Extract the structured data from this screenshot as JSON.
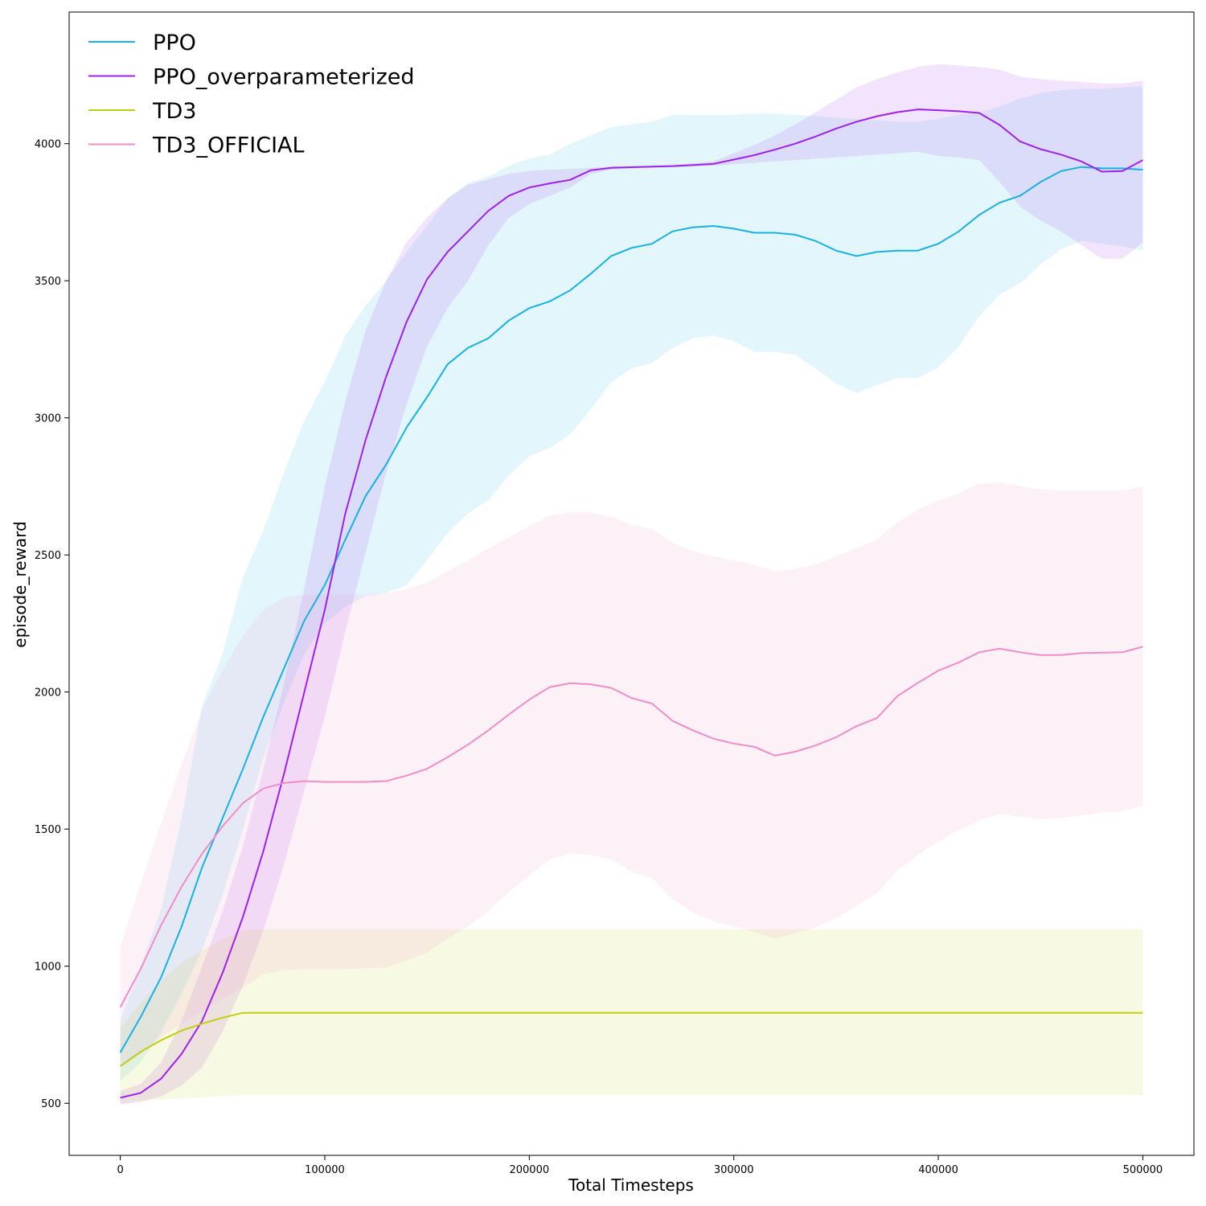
{
  "chart_data": {
    "type": "line",
    "title": "",
    "xlabel": "Total Timesteps",
    "ylabel": "episode_reward",
    "xlim": [
      -25000,
      525000
    ],
    "ylim": [
      310,
      4480
    ],
    "xticks": [
      0,
      100000,
      200000,
      300000,
      400000,
      500000
    ],
    "yticks": [
      500,
      1000,
      1500,
      2000,
      2500,
      3000,
      3500,
      4000
    ],
    "grid": false,
    "legend_position": "top-left",
    "x": [
      0,
      10000,
      20000,
      30000,
      40000,
      50000,
      60000,
      70000,
      80000,
      90000,
      100000,
      110000,
      120000,
      130000,
      140000,
      150000,
      160000,
      170000,
      180000,
      190000,
      200000,
      210000,
      220000,
      230000,
      240000,
      250000,
      260000,
      270000,
      280000,
      290000,
      300000,
      310000,
      320000,
      330000,
      340000,
      350000,
      360000,
      370000,
      380000,
      390000,
      400000,
      410000,
      420000,
      430000,
      440000,
      450000,
      460000,
      470000,
      480000,
      490000,
      500000
    ],
    "series": [
      {
        "name": "PPO",
        "color": "#17b1e4",
        "band_color": "#e3f5fb",
        "values": [
          685,
          815,
          960,
          1145,
          1360,
          1540,
          1720,
          1910,
          2085,
          2260,
          2390,
          2555,
          2715,
          2830,
          2965,
          3075,
          3195,
          3255,
          3290,
          3355,
          3400,
          3425,
          3465,
          3525,
          3590,
          3620,
          3635,
          3680,
          3695,
          3700,
          3690,
          3675,
          3675,
          3668,
          3645,
          3610,
          3590,
          3605,
          3610,
          3610,
          3635,
          3680,
          3740,
          3785,
          3810,
          3860,
          3900,
          3915,
          3910,
          3910,
          3905
        ],
        "lower": [
          580,
          650,
          760,
          900,
          1060,
          1260,
          1500,
          1760,
          1960,
          2140,
          2250,
          2310,
          2350,
          2360,
          2390,
          2480,
          2580,
          2650,
          2700,
          2790,
          2860,
          2890,
          2940,
          3030,
          3130,
          3180,
          3200,
          3255,
          3290,
          3300,
          3280,
          3240,
          3240,
          3230,
          3180,
          3125,
          3090,
          3120,
          3145,
          3145,
          3185,
          3260,
          3370,
          3450,
          3490,
          3560,
          3615,
          3645,
          3635,
          3625,
          3610
        ],
        "upper": [
          800,
          1000,
          1210,
          1540,
          1950,
          2140,
          2420,
          2590,
          2800,
          2990,
          3130,
          3300,
          3410,
          3500,
          3605,
          3700,
          3800,
          3855,
          3880,
          3920,
          3945,
          3960,
          4000,
          4030,
          4060,
          4070,
          4080,
          4105,
          4105,
          4105,
          4105,
          4110,
          4110,
          4105,
          4100,
          4095,
          4090,
          4085,
          4080,
          4080,
          4090,
          4105,
          4115,
          4135,
          4165,
          4185,
          4195,
          4200,
          4200,
          4205,
          4210
        ]
      },
      {
        "name": "PPO_overparameterized",
        "color": "#a020f0",
        "band_color": "#d8d8f8",
        "values": [
          520,
          538,
          590,
          680,
          800,
          975,
          1180,
          1420,
          1700,
          2000,
          2300,
          2650,
          2920,
          3150,
          3350,
          3505,
          3605,
          3680,
          3755,
          3810,
          3840,
          3855,
          3868,
          3903,
          3912,
          3914,
          3916,
          3918,
          3922,
          3926,
          3942,
          3958,
          3978,
          4000,
          4026,
          4055,
          4080,
          4100,
          4115,
          4125,
          4122,
          4118,
          4112,
          4068,
          4008,
          3980,
          3960,
          3935,
          3898,
          3900,
          3940
        ],
        "lower": [
          495,
          505,
          525,
          565,
          630,
          760,
          930,
          1130,
          1370,
          1640,
          1910,
          2220,
          2510,
          2800,
          3050,
          3260,
          3400,
          3500,
          3630,
          3730,
          3780,
          3810,
          3840,
          3890,
          3905,
          3910,
          3912,
          3914,
          3916,
          3920,
          3925,
          3930,
          3935,
          3940,
          3945,
          3950,
          3955,
          3960,
          3965,
          3970,
          3955,
          3950,
          3940,
          3860,
          3770,
          3720,
          3680,
          3630,
          3580,
          3580,
          3640
        ],
        "upper": [
          545,
          570,
          650,
          800,
          1000,
          1200,
          1440,
          1720,
          2030,
          2380,
          2750,
          3060,
          3320,
          3500,
          3640,
          3730,
          3800,
          3850,
          3870,
          3890,
          3900,
          3905,
          3908,
          3912,
          3916,
          3918,
          3920,
          3923,
          3928,
          3935,
          3965,
          3995,
          4030,
          4070,
          4115,
          4160,
          4205,
          4235,
          4260,
          4280,
          4290,
          4285,
          4280,
          4270,
          4245,
          4235,
          4230,
          4225,
          4220,
          4220,
          4230
        ]
      },
      {
        "name": "TD3",
        "color": "#c4cc12",
        "band_color": "#f8f8e6",
        "values": [
          635,
          688,
          730,
          765,
          790,
          812,
          830,
          830,
          830,
          830,
          830,
          830,
          830,
          830,
          830,
          830,
          830,
          830,
          830,
          830,
          830,
          830,
          830,
          830,
          830,
          830,
          830,
          830,
          830,
          830,
          830,
          830,
          830,
          830,
          830,
          830,
          830,
          830,
          830,
          830,
          830,
          830,
          830,
          830,
          830,
          830,
          830,
          830,
          830,
          830,
          830
        ],
        "lower": [
          500,
          508,
          513,
          518,
          522,
          526,
          530,
          530,
          530,
          530,
          530,
          530,
          530,
          530,
          530,
          530,
          530,
          530,
          530,
          530,
          530,
          530,
          530,
          530,
          530,
          530,
          530,
          530,
          530,
          530,
          530,
          530,
          530,
          530,
          530,
          530,
          530,
          530,
          530,
          530,
          530,
          530,
          530,
          530,
          530,
          530,
          530,
          530,
          530,
          530,
          530
        ],
        "upper": [
          770,
          868,
          947,
          1012,
          1058,
          1097,
          1130,
          1135,
          1135,
          1135,
          1135,
          1135,
          1135,
          1135,
          1135,
          1135,
          1135,
          1135,
          1135,
          1135,
          1135,
          1135,
          1135,
          1135,
          1135,
          1135,
          1135,
          1135,
          1135,
          1135,
          1135,
          1135,
          1135,
          1135,
          1135,
          1135,
          1135,
          1135,
          1135,
          1135,
          1135,
          1135,
          1135,
          1135,
          1135,
          1135,
          1135,
          1135,
          1135,
          1135,
          1135
        ]
      },
      {
        "name": "TD3_OFFICIAL",
        "color": "#f28cc8",
        "band_color": "#fdf1f8",
        "values": [
          850,
          990,
          1150,
          1290,
          1410,
          1510,
          1595,
          1648,
          1668,
          1675,
          1672,
          1672,
          1672,
          1675,
          1695,
          1720,
          1762,
          1808,
          1860,
          1918,
          1972,
          2018,
          2032,
          2028,
          2015,
          1978,
          1958,
          1895,
          1860,
          1830,
          1812,
          1800,
          1768,
          1782,
          1805,
          1835,
          1875,
          1905,
          1985,
          2033,
          2078,
          2108,
          2145,
          2158,
          2145,
          2135,
          2135,
          2142,
          2143,
          2145,
          2165
        ],
        "lower": [
          630,
          680,
          740,
          790,
          835,
          880,
          920,
          970,
          985,
          990,
          990,
          990,
          992,
          995,
          1020,
          1050,
          1100,
          1145,
          1200,
          1270,
          1330,
          1390,
          1410,
          1405,
          1390,
          1345,
          1320,
          1245,
          1195,
          1165,
          1145,
          1125,
          1100,
          1120,
          1140,
          1175,
          1220,
          1265,
          1350,
          1405,
          1455,
          1495,
          1530,
          1555,
          1545,
          1535,
          1540,
          1550,
          1560,
          1565,
          1585
        ],
        "upper": [
          1070,
          1300,
          1520,
          1740,
          1935,
          2080,
          2205,
          2300,
          2345,
          2355,
          2355,
          2355,
          2355,
          2360,
          2375,
          2400,
          2440,
          2480,
          2525,
          2565,
          2605,
          2645,
          2655,
          2655,
          2640,
          2610,
          2595,
          2545,
          2515,
          2495,
          2480,
          2465,
          2440,
          2450,
          2465,
          2495,
          2525,
          2555,
          2620,
          2665,
          2700,
          2725,
          2760,
          2765,
          2750,
          2740,
          2735,
          2735,
          2735,
          2735,
          2750
        ]
      }
    ]
  }
}
